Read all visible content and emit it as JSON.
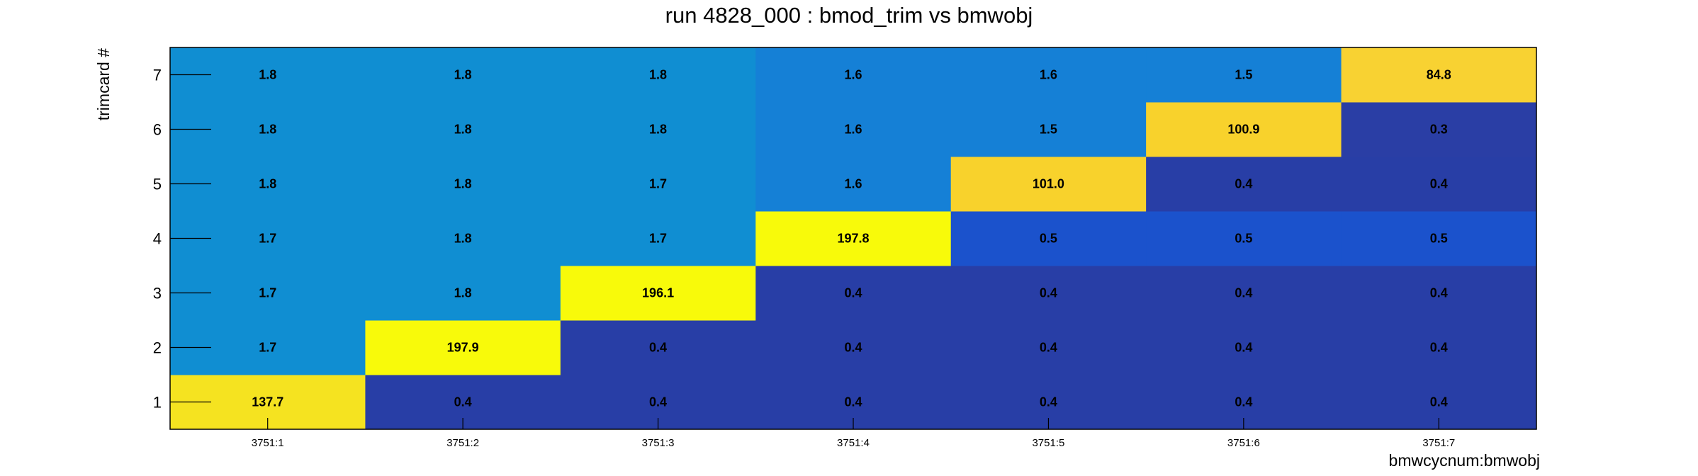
{
  "chart_data": {
    "type": "heatmap",
    "title": "run 4828_000 : bmod_trim vs bmwobj",
    "xlabel": "bmwcycnum:bmwobj",
    "ylabel": "trimcard #",
    "x_categories": [
      "3751:1",
      "3751:2",
      "3751:3",
      "3751:4",
      "3751:5",
      "3751:6",
      "3751:7"
    ],
    "y_categories": [
      "1",
      "2",
      "3",
      "4",
      "5",
      "6",
      "7"
    ],
    "values": [
      [
        137.7,
        0.4,
        0.4,
        0.4,
        0.4,
        0.4,
        0.4
      ],
      [
        1.7,
        197.9,
        0.4,
        0.4,
        0.4,
        0.4,
        0.4
      ],
      [
        1.7,
        1.8,
        196.1,
        0.4,
        0.4,
        0.4,
        0.4
      ],
      [
        1.7,
        1.8,
        1.7,
        197.8,
        0.5,
        0.5,
        0.5
      ],
      [
        1.8,
        1.8,
        1.7,
        1.6,
        101.0,
        0.4,
        0.4
      ],
      [
        1.8,
        1.8,
        1.8,
        1.6,
        1.5,
        100.9,
        0.3
      ],
      [
        1.8,
        1.8,
        1.8,
        1.6,
        1.6,
        1.5,
        84.8
      ]
    ],
    "colors": {
      "0.3": "#2a3ea5",
      "0.4": "#283ea6",
      "0.5": "#1b52cc",
      "1.5": "#1580d6",
      "1.6": "#1580d6",
      "1.7": "#108ed2",
      "1.8": "#108ed2",
      "84.8": "#f8d232",
      "100.9": "#f8d22c",
      "101.0": "#f8d22c",
      "137.7": "#f5e320",
      "196.1": "#f8fa0a",
      "197.8": "#f8fa0a",
      "197.9": "#f8fa0a"
    },
    "grid": false,
    "legend": "none"
  }
}
